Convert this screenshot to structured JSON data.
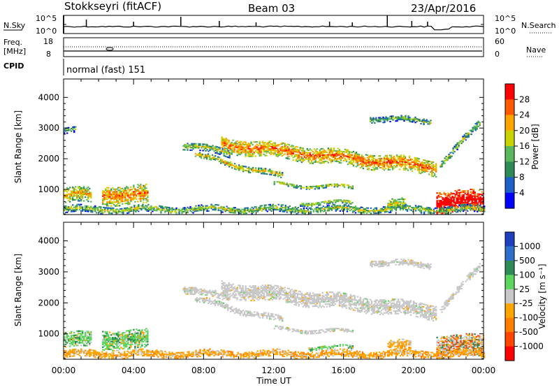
{
  "header": {
    "station": "Stokkseyri (fitACF)",
    "beam": "Beam 03",
    "date": "23/Apr/2016"
  },
  "top_panels": {
    "nsky_label": "N.Sky",
    "nsky_ticks": [
      "10^5",
      "10^0"
    ],
    "nsearch_label": "N.Search",
    "nsearch_ticks": [
      "10^5",
      "10^0"
    ],
    "freq_label_top": "Freq.",
    "freq_label_unit": "[MHz]",
    "freq_ticks": [
      "18",
      "8"
    ],
    "nave_label": "Nave",
    "nave_ticks": [
      "60",
      "0"
    ],
    "cpid_label": "CPID",
    "cpid_text": "normal (fast) 151"
  },
  "chart_data": [
    {
      "type": "heatmap",
      "panel": "power",
      "ylabel": "Slant Range [km]",
      "xlabel": "",
      "x_ticks": [
        "00:00",
        "04:00",
        "08:00",
        "12:00",
        "16:00",
        "20:00",
        "00:00"
      ],
      "x_range_hours": [
        0,
        24
      ],
      "y_ticks": [
        1000,
        2000,
        3000,
        4000
      ],
      "ylim": [
        180,
        4600
      ],
      "colorbar": {
        "label": "Power [dB]",
        "ticks": [
          "4",
          "8",
          "12",
          "16",
          "20",
          "24",
          "28"
        ],
        "colors": [
          "#0000ff",
          "#1f5fc8",
          "#2e8b57",
          "#5cb85c",
          "#c8d400",
          "#ffa500",
          "#ff5a00",
          "#ff0000"
        ]
      },
      "regions": [
        {
          "t0": 9.0,
          "t1": 21.3,
          "r_mid0": 2450,
          "r_mid1": 1700,
          "thickness": 500,
          "level": 0.45,
          "note": "main band"
        },
        {
          "t0": 6.8,
          "t1": 9.5,
          "r_mid0": 2450,
          "r_mid1": 2150,
          "thickness": 250,
          "level": 0.2
        },
        {
          "t0": 7.5,
          "t1": 12.5,
          "r_mid0": 2100,
          "r_mid1": 1400,
          "thickness": 180,
          "level": 0.3
        },
        {
          "t0": 12.0,
          "t1": 16.5,
          "r_mid0": 1150,
          "r_mid1": 1050,
          "thickness": 120,
          "level": 0.25
        },
        {
          "t0": 17.5,
          "t1": 21.0,
          "r_mid0": 3300,
          "r_mid1": 3200,
          "thickness": 180,
          "level": 0.15
        },
        {
          "t0": 21.5,
          "t1": 23.8,
          "r_mid0": 1800,
          "r_mid1": 3150,
          "thickness": 220,
          "level": 0.2
        },
        {
          "t0": 0.0,
          "t1": 1.6,
          "r_mid0": 800,
          "r_mid1": 800,
          "thickness": 500,
          "level": 0.35
        },
        {
          "t0": 2.2,
          "t1": 4.8,
          "r_mid0": 800,
          "r_mid1": 800,
          "thickness": 600,
          "level": 0.45
        },
        {
          "t0": 21.3,
          "t1": 24.0,
          "r_mid0": 600,
          "r_mid1": 600,
          "thickness": 700,
          "level": 0.75
        },
        {
          "t0": 0.0,
          "t1": 24.0,
          "r_mid0": 330,
          "r_mid1": 330,
          "thickness": 220,
          "level": 0.2
        },
        {
          "t0": 18.5,
          "t1": 19.5,
          "r_mid0": 500,
          "r_mid1": 500,
          "thickness": 300,
          "level": 0.3
        },
        {
          "t0": 13.5,
          "t1": 16.5,
          "r_mid0": 550,
          "r_mid1": 550,
          "thickness": 120,
          "level": 0.25
        },
        {
          "t0": 0.0,
          "t1": 0.7,
          "r_mid0": 2900,
          "r_mid1": 2900,
          "thickness": 200,
          "level": 0.1
        }
      ]
    },
    {
      "type": "heatmap",
      "panel": "velocity",
      "ylabel": "Slant Range [km]",
      "xlabel": "Time UT",
      "x_ticks": [
        "00:00",
        "04:00",
        "08:00",
        "12:00",
        "16:00",
        "20:00",
        "00:00"
      ],
      "x_range_hours": [
        0,
        24
      ],
      "y_ticks": [
        1000,
        2000,
        3000,
        4000
      ],
      "ylim": [
        180,
        4600
      ],
      "colorbar": {
        "label": "Velocity [m s⁻¹]",
        "ticks": [
          "1000",
          "500",
          "100",
          "25",
          "-25",
          "-100",
          "-500",
          "-1000"
        ],
        "colors": [
          "#1f3fbf",
          "#2e6fcc",
          "#2e8b57",
          "#5cd65c",
          "#c8c8c8",
          "#ffa500",
          "#ff7f00",
          "#ff4500",
          "#ff0000"
        ]
      },
      "regions": [
        {
          "t0": 9.0,
          "t1": 21.3,
          "r_mid0": 2450,
          "r_mid1": 1700,
          "thickness": 500,
          "cls": "gray"
        },
        {
          "t0": 6.8,
          "t1": 9.5,
          "r_mid0": 2450,
          "r_mid1": 2150,
          "thickness": 250,
          "cls": "gray"
        },
        {
          "t0": 7.5,
          "t1": 12.5,
          "r_mid0": 2100,
          "r_mid1": 1400,
          "thickness": 180,
          "cls": "gray"
        },
        {
          "t0": 12.0,
          "t1": 16.5,
          "r_mid0": 1150,
          "r_mid1": 1050,
          "thickness": 120,
          "cls": "gray"
        },
        {
          "t0": 17.5,
          "t1": 21.0,
          "r_mid0": 3300,
          "r_mid1": 3200,
          "thickness": 180,
          "cls": "gray"
        },
        {
          "t0": 21.5,
          "t1": 23.8,
          "r_mid0": 1800,
          "r_mid1": 3150,
          "thickness": 220,
          "cls": "gray"
        },
        {
          "t0": 0.0,
          "t1": 1.6,
          "r_mid0": 800,
          "r_mid1": 800,
          "thickness": 500,
          "cls": "green"
        },
        {
          "t0": 2.2,
          "t1": 4.8,
          "r_mid0": 800,
          "r_mid1": 800,
          "thickness": 600,
          "cls": "green"
        },
        {
          "t0": 21.3,
          "t1": 24.0,
          "r_mid0": 600,
          "r_mid1": 600,
          "thickness": 700,
          "cls": "mixed"
        },
        {
          "t0": 0.0,
          "t1": 24.0,
          "r_mid0": 330,
          "r_mid1": 330,
          "thickness": 220,
          "cls": "orange"
        },
        {
          "t0": 18.5,
          "t1": 19.8,
          "r_mid0": 600,
          "r_mid1": 600,
          "thickness": 300,
          "cls": "orange"
        },
        {
          "t0": 14.0,
          "t1": 16.5,
          "r_mid0": 550,
          "r_mid1": 550,
          "thickness": 120,
          "cls": "green"
        }
      ]
    }
  ]
}
